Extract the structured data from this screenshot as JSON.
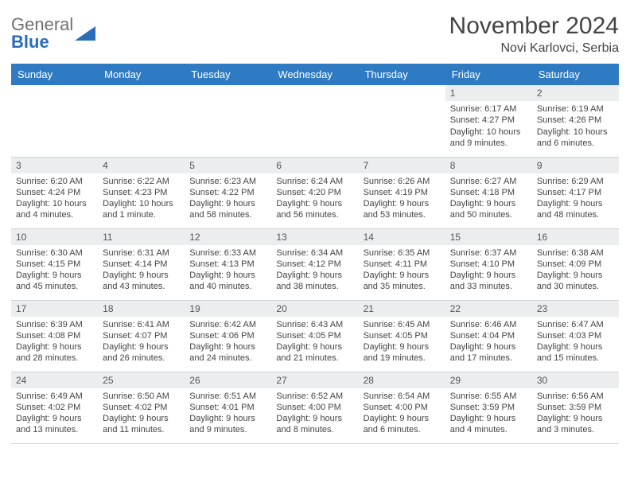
{
  "brand": {
    "part1": "General",
    "part2": "Blue"
  },
  "colors": {
    "header_bg": "#2f7bc3",
    "header_text": "#ffffff",
    "daynum_bg": "#ebedef",
    "border": "#d0d3d6",
    "brand_gray": "#6f6f6f",
    "brand_blue": "#2a6db8",
    "text": "#444444",
    "background": "#ffffff"
  },
  "title": "November 2024",
  "location": "Novi Karlovci, Serbia",
  "weekdays": [
    "Sunday",
    "Monday",
    "Tuesday",
    "Wednesday",
    "Thursday",
    "Friday",
    "Saturday"
  ],
  "weeks": [
    [
      null,
      null,
      null,
      null,
      null,
      {
        "n": "1",
        "sunrise": "Sunrise: 6:17 AM",
        "sunset": "Sunset: 4:27 PM",
        "daylight": "Daylight: 10 hours and 9 minutes."
      },
      {
        "n": "2",
        "sunrise": "Sunrise: 6:19 AM",
        "sunset": "Sunset: 4:26 PM",
        "daylight": "Daylight: 10 hours and 6 minutes."
      }
    ],
    [
      {
        "n": "3",
        "sunrise": "Sunrise: 6:20 AM",
        "sunset": "Sunset: 4:24 PM",
        "daylight": "Daylight: 10 hours and 4 minutes."
      },
      {
        "n": "4",
        "sunrise": "Sunrise: 6:22 AM",
        "sunset": "Sunset: 4:23 PM",
        "daylight": "Daylight: 10 hours and 1 minute."
      },
      {
        "n": "5",
        "sunrise": "Sunrise: 6:23 AM",
        "sunset": "Sunset: 4:22 PM",
        "daylight": "Daylight: 9 hours and 58 minutes."
      },
      {
        "n": "6",
        "sunrise": "Sunrise: 6:24 AM",
        "sunset": "Sunset: 4:20 PM",
        "daylight": "Daylight: 9 hours and 56 minutes."
      },
      {
        "n": "7",
        "sunrise": "Sunrise: 6:26 AM",
        "sunset": "Sunset: 4:19 PM",
        "daylight": "Daylight: 9 hours and 53 minutes."
      },
      {
        "n": "8",
        "sunrise": "Sunrise: 6:27 AM",
        "sunset": "Sunset: 4:18 PM",
        "daylight": "Daylight: 9 hours and 50 minutes."
      },
      {
        "n": "9",
        "sunrise": "Sunrise: 6:29 AM",
        "sunset": "Sunset: 4:17 PM",
        "daylight": "Daylight: 9 hours and 48 minutes."
      }
    ],
    [
      {
        "n": "10",
        "sunrise": "Sunrise: 6:30 AM",
        "sunset": "Sunset: 4:15 PM",
        "daylight": "Daylight: 9 hours and 45 minutes."
      },
      {
        "n": "11",
        "sunrise": "Sunrise: 6:31 AM",
        "sunset": "Sunset: 4:14 PM",
        "daylight": "Daylight: 9 hours and 43 minutes."
      },
      {
        "n": "12",
        "sunrise": "Sunrise: 6:33 AM",
        "sunset": "Sunset: 4:13 PM",
        "daylight": "Daylight: 9 hours and 40 minutes."
      },
      {
        "n": "13",
        "sunrise": "Sunrise: 6:34 AM",
        "sunset": "Sunset: 4:12 PM",
        "daylight": "Daylight: 9 hours and 38 minutes."
      },
      {
        "n": "14",
        "sunrise": "Sunrise: 6:35 AM",
        "sunset": "Sunset: 4:11 PM",
        "daylight": "Daylight: 9 hours and 35 minutes."
      },
      {
        "n": "15",
        "sunrise": "Sunrise: 6:37 AM",
        "sunset": "Sunset: 4:10 PM",
        "daylight": "Daylight: 9 hours and 33 minutes."
      },
      {
        "n": "16",
        "sunrise": "Sunrise: 6:38 AM",
        "sunset": "Sunset: 4:09 PM",
        "daylight": "Daylight: 9 hours and 30 minutes."
      }
    ],
    [
      {
        "n": "17",
        "sunrise": "Sunrise: 6:39 AM",
        "sunset": "Sunset: 4:08 PM",
        "daylight": "Daylight: 9 hours and 28 minutes."
      },
      {
        "n": "18",
        "sunrise": "Sunrise: 6:41 AM",
        "sunset": "Sunset: 4:07 PM",
        "daylight": "Daylight: 9 hours and 26 minutes."
      },
      {
        "n": "19",
        "sunrise": "Sunrise: 6:42 AM",
        "sunset": "Sunset: 4:06 PM",
        "daylight": "Daylight: 9 hours and 24 minutes."
      },
      {
        "n": "20",
        "sunrise": "Sunrise: 6:43 AM",
        "sunset": "Sunset: 4:05 PM",
        "daylight": "Daylight: 9 hours and 21 minutes."
      },
      {
        "n": "21",
        "sunrise": "Sunrise: 6:45 AM",
        "sunset": "Sunset: 4:05 PM",
        "daylight": "Daylight: 9 hours and 19 minutes."
      },
      {
        "n": "22",
        "sunrise": "Sunrise: 6:46 AM",
        "sunset": "Sunset: 4:04 PM",
        "daylight": "Daylight: 9 hours and 17 minutes."
      },
      {
        "n": "23",
        "sunrise": "Sunrise: 6:47 AM",
        "sunset": "Sunset: 4:03 PM",
        "daylight": "Daylight: 9 hours and 15 minutes."
      }
    ],
    [
      {
        "n": "24",
        "sunrise": "Sunrise: 6:49 AM",
        "sunset": "Sunset: 4:02 PM",
        "daylight": "Daylight: 9 hours and 13 minutes."
      },
      {
        "n": "25",
        "sunrise": "Sunrise: 6:50 AM",
        "sunset": "Sunset: 4:02 PM",
        "daylight": "Daylight: 9 hours and 11 minutes."
      },
      {
        "n": "26",
        "sunrise": "Sunrise: 6:51 AM",
        "sunset": "Sunset: 4:01 PM",
        "daylight": "Daylight: 9 hours and 9 minutes."
      },
      {
        "n": "27",
        "sunrise": "Sunrise: 6:52 AM",
        "sunset": "Sunset: 4:00 PM",
        "daylight": "Daylight: 9 hours and 8 minutes."
      },
      {
        "n": "28",
        "sunrise": "Sunrise: 6:54 AM",
        "sunset": "Sunset: 4:00 PM",
        "daylight": "Daylight: 9 hours and 6 minutes."
      },
      {
        "n": "29",
        "sunrise": "Sunrise: 6:55 AM",
        "sunset": "Sunset: 3:59 PM",
        "daylight": "Daylight: 9 hours and 4 minutes."
      },
      {
        "n": "30",
        "sunrise": "Sunrise: 6:56 AM",
        "sunset": "Sunset: 3:59 PM",
        "daylight": "Daylight: 9 hours and 3 minutes."
      }
    ]
  ]
}
